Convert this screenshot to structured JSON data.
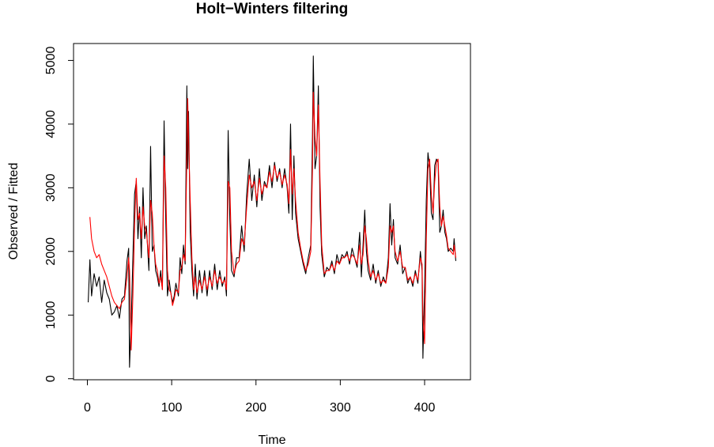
{
  "chart_data": {
    "type": "line",
    "title": "Holt−Winters filtering",
    "xlabel": "Time",
    "ylabel": "Observed / Fitted",
    "xlim": [
      -16.4,
      454.4
    ],
    "ylim": [
      -16,
      5266
    ],
    "xticks": [
      0,
      100,
      200,
      300,
      400
    ],
    "yticks": [
      0,
      1000,
      2000,
      3000,
      4000,
      5000
    ],
    "series": [
      {
        "color": "#000000",
        "x": [
          1,
          3,
          5,
          8,
          11,
          14,
          17,
          20,
          23,
          26,
          29,
          32,
          35,
          38,
          41,
          44,
          47,
          49,
          50,
          52,
          54,
          56,
          58,
          60,
          62,
          64,
          66,
          68,
          70,
          73,
          75,
          77,
          79,
          81,
          83,
          85,
          87,
          89,
          91,
          93,
          95,
          97,
          99,
          101,
          103,
          105,
          108,
          110,
          112,
          114,
          116,
          118,
          119,
          120,
          122,
          124,
          126,
          128,
          130,
          133,
          136,
          139,
          142,
          145,
          148,
          151,
          154,
          157,
          160,
          163,
          165,
          167,
          169,
          171,
          174,
          177,
          180,
          183,
          186,
          189,
          192,
          195,
          198,
          201,
          204,
          207,
          210,
          213,
          216,
          219,
          222,
          225,
          228,
          231,
          234,
          237,
          239,
          241,
          243,
          245,
          247,
          250,
          253,
          256,
          259,
          262,
          265,
          267,
          268,
          270,
          272,
          274,
          276,
          278,
          281,
          284,
          287,
          290,
          293,
          296,
          299,
          302,
          305,
          308,
          311,
          314,
          317,
          320,
          323,
          325,
          327,
          329,
          331,
          333,
          336,
          339,
          342,
          345,
          348,
          351,
          354,
          357,
          359,
          361,
          363,
          365,
          368,
          371,
          374,
          377,
          380,
          383,
          386,
          389,
          392,
          395,
          397,
          398,
          400,
          402,
          404,
          406,
          408,
          410,
          412,
          414,
          416,
          418,
          420,
          422,
          424,
          426,
          428,
          431,
          434,
          435,
          437
        ],
        "values": [
          1200,
          1870,
          1300,
          1650,
          1450,
          1600,
          1200,
          1550,
          1350,
          1250,
          1000,
          1050,
          1150,
          950,
          1250,
          1300,
          1850,
          2050,
          180,
          900,
          1900,
          2900,
          3100,
          2200,
          2700,
          1900,
          3000,
          2200,
          2400,
          1700,
          3650,
          2000,
          2100,
          1700,
          1600,
          1450,
          1700,
          1400,
          4050,
          2500,
          1300,
          1550,
          1350,
          1200,
          1300,
          1500,
          1300,
          1900,
          1650,
          2100,
          1800,
          4600,
          3300,
          4200,
          2300,
          1700,
          1300,
          1800,
          1250,
          1700,
          1350,
          1700,
          1300,
          1700,
          1400,
          1800,
          1400,
          1700,
          1450,
          1600,
          1300,
          3900,
          2500,
          1700,
          1600,
          1900,
          1900,
          2400,
          2000,
          2900,
          3450,
          2800,
          3200,
          2700,
          3300,
          2800,
          3100,
          3000,
          3350,
          3000,
          3400,
          3100,
          3300,
          3000,
          3300,
          3000,
          2600,
          4000,
          2500,
          3500,
          2600,
          2200,
          2000,
          1800,
          1650,
          1900,
          2100,
          3800,
          5070,
          3300,
          3500,
          4600,
          2700,
          1950,
          1600,
          1750,
          1700,
          1850,
          1650,
          1950,
          1800,
          1950,
          1900,
          2000,
          1800,
          2050,
          1900,
          1750,
          2300,
          1600,
          2100,
          2650,
          2000,
          1700,
          1550,
          1800,
          1500,
          1700,
          1450,
          1600,
          1500,
          1900,
          2750,
          2100,
          2500,
          1900,
          1800,
          2100,
          1650,
          1750,
          1500,
          1600,
          1450,
          1700,
          1500,
          2000,
          1700,
          320,
          1400,
          2800,
          3550,
          3300,
          2600,
          2500,
          3350,
          3450,
          3400,
          2300,
          2400,
          2650,
          2300,
          2200,
          2000,
          2050,
          2000,
          2200,
          1850
        ]
      },
      {
        "color": "#ff0000",
        "x": [
          3,
          5,
          8,
          11,
          14,
          17,
          20,
          23,
          26,
          29,
          32,
          35,
          38,
          41,
          44,
          47,
          49,
          50,
          52,
          54,
          56,
          58,
          60,
          62,
          64,
          66,
          68,
          70,
          73,
          75,
          77,
          79,
          81,
          83,
          85,
          87,
          89,
          91,
          93,
          95,
          97,
          99,
          101,
          103,
          105,
          108,
          110,
          112,
          114,
          116,
          118,
          119,
          120,
          122,
          124,
          126,
          128,
          130,
          133,
          136,
          139,
          142,
          145,
          148,
          151,
          154,
          157,
          160,
          163,
          165,
          167,
          169,
          171,
          174,
          177,
          180,
          183,
          186,
          189,
          192,
          195,
          198,
          201,
          204,
          207,
          210,
          213,
          216,
          219,
          222,
          225,
          228,
          231,
          234,
          237,
          239,
          241,
          243,
          245,
          247,
          250,
          253,
          256,
          259,
          262,
          265,
          267,
          268,
          270,
          272,
          274,
          276,
          278,
          281,
          284,
          287,
          290,
          293,
          296,
          299,
          302,
          305,
          308,
          311,
          314,
          317,
          320,
          323,
          325,
          327,
          329,
          331,
          333,
          336,
          339,
          342,
          345,
          348,
          351,
          354,
          357,
          359,
          361,
          363,
          365,
          368,
          371,
          374,
          377,
          380,
          383,
          386,
          389,
          392,
          395,
          397,
          398,
          400,
          402,
          404,
          406,
          408,
          410,
          412,
          414,
          416,
          418,
          420,
          422,
          424,
          426,
          428,
          431,
          434,
          435,
          437
        ],
        "values": [
          2540,
          2200,
          2000,
          1900,
          1950,
          1800,
          1700,
          1600,
          1450,
          1300,
          1200,
          1150,
          1100,
          1200,
          1250,
          1600,
          1900,
          1700,
          450,
          1300,
          2400,
          3150,
          2500,
          2600,
          2200,
          2700,
          2400,
          2300,
          1900,
          2800,
          2600,
          2100,
          1800,
          1700,
          1500,
          1600,
          1400,
          3500,
          3000,
          1700,
          1400,
          1350,
          1150,
          1250,
          1400,
          1350,
          1700,
          1750,
          1950,
          1850,
          3500,
          4400,
          3800,
          2800,
          1900,
          1400,
          1600,
          1350,
          1550,
          1400,
          1600,
          1400,
          1600,
          1450,
          1700,
          1500,
          1600,
          1500,
          1550,
          1400,
          3100,
          3000,
          2000,
          1650,
          1800,
          1850,
          2200,
          2100,
          2700,
          3200,
          3000,
          3100,
          2800,
          3150,
          2900,
          3050,
          3000,
          3250,
          3100,
          3350,
          3150,
          3250,
          3050,
          3200,
          3050,
          2750,
          3600,
          2900,
          3300,
          2800,
          2300,
          2050,
          1850,
          1700,
          1800,
          2000,
          3300,
          4500,
          3800,
          3500,
          4300,
          3100,
          2100,
          1650,
          1700,
          1700,
          1800,
          1700,
          1850,
          1800,
          1900,
          1900,
          1950,
          1850,
          1950,
          1900,
          1800,
          2100,
          1800,
          1950,
          2400,
          2200,
          1850,
          1600,
          1700,
          1550,
          1650,
          1500,
          1550,
          1500,
          1750,
          2400,
          2300,
          2400,
          2000,
          1850,
          2000,
          1750,
          1750,
          1550,
          1600,
          1500,
          1650,
          1550,
          1900,
          1800,
          1000,
          550,
          2200,
          3300,
          3450,
          2900,
          2600,
          3100,
          3400,
          3450,
          2700,
          2400,
          2550,
          2400,
          2250,
          2050,
          2000,
          1950,
          2100,
          1900
        ]
      }
    ]
  }
}
